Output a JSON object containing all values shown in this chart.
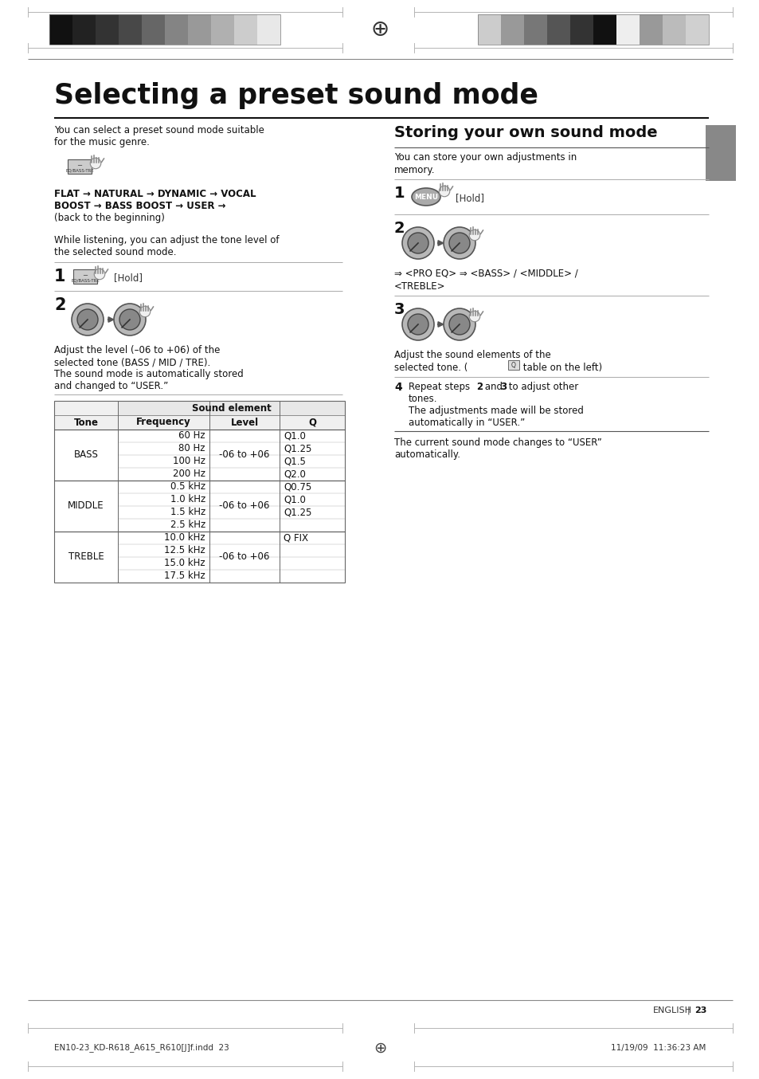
{
  "bg_color": "#ffffff",
  "title": "Selecting a preset sound mode",
  "footer_text_left": "EN10-23_KD-R618_A615_R610[J]f.indd  23",
  "footer_text_right": "11/19/09  11:36:23 AM",
  "page_number": "23",
  "table_tone_col": [
    "BASS",
    "MIDDLE",
    "TREBLE"
  ],
  "table_freq": [
    [
      "60 Hz",
      "80 Hz",
      "100 Hz",
      "200 Hz"
    ],
    [
      "0.5 kHz",
      "1.0 kHz",
      "1.5 kHz",
      "2.5 kHz"
    ],
    [
      "10.0 kHz",
      "12.5 kHz",
      "15.0 kHz",
      "17.5 kHz"
    ]
  ],
  "table_level": [
    "-06 to +06",
    "-06 to +06",
    "-06 to +06"
  ],
  "table_q": [
    [
      "Q1.0",
      "Q1.25",
      "Q1.5",
      "Q2.0"
    ],
    [
      "Q0.75",
      "Q1.0",
      "Q1.25",
      ""
    ],
    [
      "Q FIX",
      "",
      "",
      ""
    ]
  ],
  "grays_left": [
    "#111111",
    "#222222",
    "#333333",
    "#484848",
    "#666666",
    "#848484",
    "#999999",
    "#b0b0b0",
    "#cccccc",
    "#e8e8e8"
  ],
  "grays_right": [
    "#cccccc",
    "#999999",
    "#777777",
    "#555555",
    "#333333",
    "#111111",
    "#eeeeee",
    "#999999",
    "#bbbbbb",
    "#d0d0d0"
  ]
}
